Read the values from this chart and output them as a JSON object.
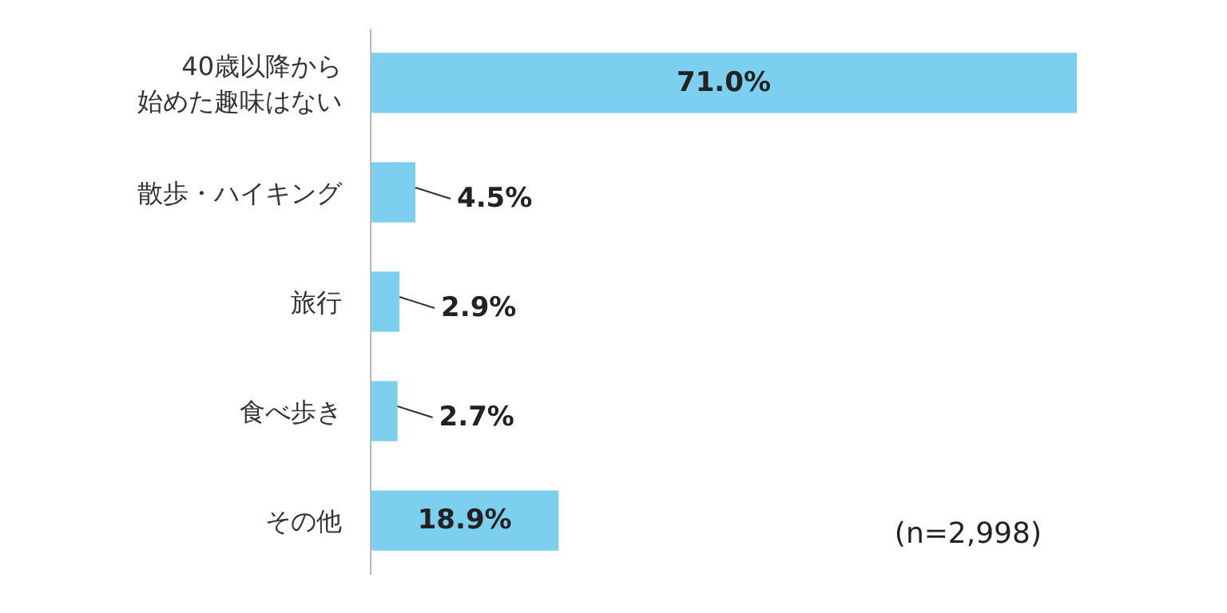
{
  "chart_data": {
    "type": "bar",
    "orientation": "horizontal",
    "categories": [
      "40歳以降から始めた趣味はない",
      "散歩・ハイキング",
      "旅行",
      "食べ歩き",
      "その他"
    ],
    "values": [
      71.0,
      4.5,
      2.9,
      2.7,
      18.9
    ],
    "color": "#7dcfef",
    "value_labels": [
      "71.0%",
      "4.5%",
      "2.9%",
      "2.7%",
      "18.9%"
    ],
    "annotations": [
      "(n=2,998)"
    ]
  }
}
